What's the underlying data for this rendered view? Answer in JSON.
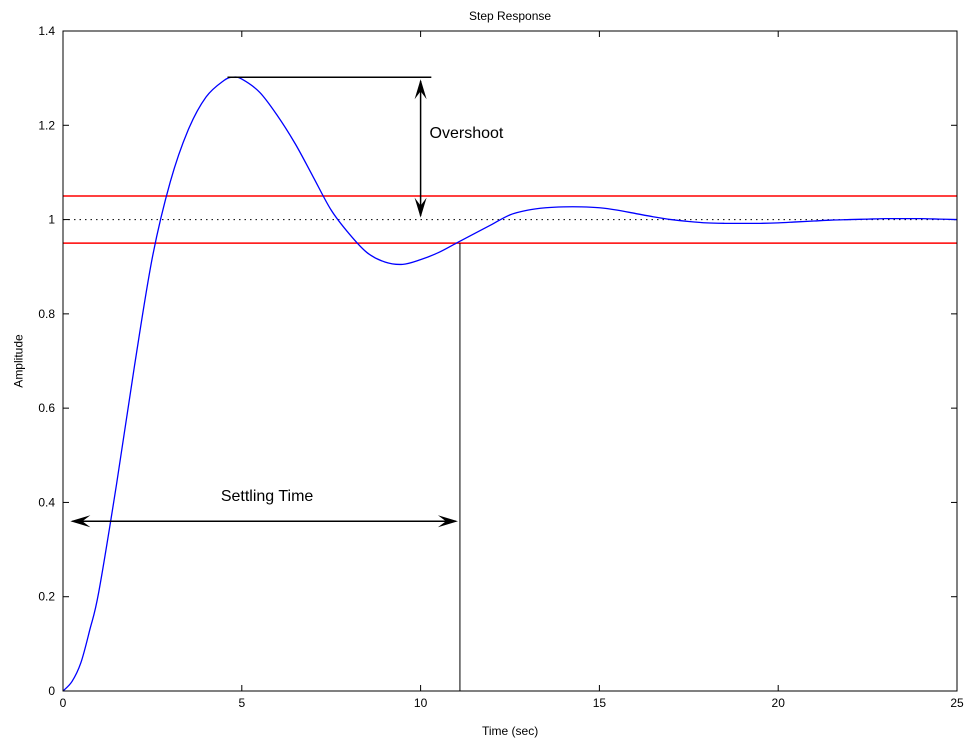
{
  "chart_data": {
    "type": "line",
    "title": "Step Response",
    "xlabel": "Time (sec)",
    "ylabel": "Amplitude",
    "xlim": [
      0,
      25
    ],
    "ylim": [
      0,
      1.4
    ],
    "x_ticks": [
      0,
      5,
      10,
      15,
      20,
      25
    ],
    "y_ticks": [
      0,
      0.2,
      0.4,
      0.6,
      0.8,
      1,
      1.2,
      1.4
    ],
    "x_tick_labels": [
      "0",
      "5",
      "10",
      "15",
      "20",
      "25"
    ],
    "y_tick_labels": [
      "0",
      "0.2",
      "0.4",
      "0.6",
      "0.8",
      "1",
      "1.2",
      "1.4"
    ],
    "grid": false,
    "series": [
      {
        "color": "#0000ff",
        "x": [
          0,
          0.25,
          0.5,
          0.75,
          1,
          1.5,
          2,
          2.5,
          3,
          3.5,
          4,
          4.5,
          4.75,
          5,
          5.5,
          6,
          6.5,
          7,
          7.5,
          8,
          8.5,
          9,
          9.5,
          10,
          10.5,
          11,
          11.5,
          12,
          12.5,
          13,
          13.5,
          14,
          14.5,
          15,
          15.5,
          16,
          16.5,
          17,
          17.5,
          18,
          18.5,
          19,
          19.5,
          20,
          20.5,
          21,
          21.5,
          22,
          22.5,
          23,
          23.5,
          24,
          24.5,
          25
        ],
        "y": [
          0,
          0.02,
          0.06,
          0.13,
          0.21,
          0.44,
          0.69,
          0.92,
          1.08,
          1.19,
          1.26,
          1.295,
          1.302,
          1.298,
          1.27,
          1.22,
          1.16,
          1.09,
          1.02,
          0.97,
          0.93,
          0.91,
          0.905,
          0.915,
          0.93,
          0.95,
          0.97,
          0.99,
          1.01,
          1.02,
          1.025,
          1.027,
          1.027,
          1.025,
          1.02,
          1.013,
          1.006,
          1.0,
          0.996,
          0.993,
          0.992,
          0.992,
          0.992,
          0.993,
          0.995,
          0.997,
          0.999,
          1.0,
          1.001,
          1.002,
          1.002,
          1.002,
          1.001,
          1.0
        ]
      }
    ],
    "reference_lines": [
      {
        "y": 1.05,
        "color": "#ff0000",
        "style": "solid"
      },
      {
        "y": 0.95,
        "color": "#ff0000",
        "style": "solid"
      },
      {
        "y": 1.0,
        "color": "#000000",
        "style": "dotted"
      }
    ],
    "annotations": [
      {
        "text": "Overshoot",
        "x": 10.25,
        "y": 1.18
      },
      {
        "text": "Settling Time",
        "x": 5.7,
        "y": 0.41
      }
    ],
    "overshoot_arrow": {
      "x": 10.0,
      "y_top": 1.302,
      "y_bottom": 1.0,
      "peak_line_x": [
        4.6,
        10.3
      ]
    },
    "settling_arrow": {
      "y": 0.36,
      "x_start": 0.15,
      "x_end": 11.1
    },
    "settling_line": {
      "x": 11.1,
      "y_top": 0.95,
      "y_bottom": 0
    }
  }
}
